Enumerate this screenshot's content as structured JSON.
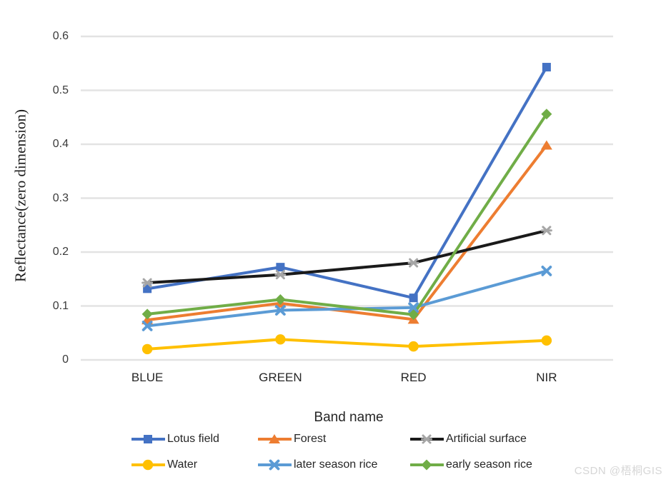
{
  "watermark": "CSDN @梧桐GIS",
  "chart_data": {
    "type": "line",
    "title": "",
    "xlabel": "Band name",
    "ylabel": "Reflectance(zero dimension)",
    "categories": [
      "BLUE",
      "GREEN",
      "RED",
      "NIR"
    ],
    "ylim": [
      0,
      0.6
    ],
    "ytick_step": 0.1,
    "ytick_labels": [
      "0",
      "0.1",
      "0.2",
      "0.3",
      "0.4",
      "0.5",
      "0.6"
    ],
    "grid": true,
    "legend_position": "bottom",
    "gridline_color": "#e3e3e3",
    "series": [
      {
        "name": "Lotus field",
        "color": "#4472C4",
        "marker": "square",
        "marker_color": "#4472C4",
        "values": [
          0.132,
          0.172,
          0.115,
          0.543
        ]
      },
      {
        "name": "Forest",
        "color": "#ED7D31",
        "marker": "triangle",
        "marker_color": "#ED7D31",
        "values": [
          0.074,
          0.105,
          0.075,
          0.398
        ]
      },
      {
        "name": "Artificial surface",
        "color": "#1a1a1a",
        "marker": "star",
        "marker_color": "#a6a6a6",
        "values": [
          0.143,
          0.158,
          0.18,
          0.24
        ]
      },
      {
        "name": "Water",
        "color": "#FFC000",
        "marker": "circle",
        "marker_color": "#FFC000",
        "values": [
          0.02,
          0.038,
          0.025,
          0.036
        ]
      },
      {
        "name": "later season rice",
        "color": "#5B9BD5",
        "marker": "x",
        "marker_color": "#5B9BD5",
        "values": [
          0.063,
          0.092,
          0.097,
          0.165
        ]
      },
      {
        "name": "early season rice",
        "color": "#70AD47",
        "marker": "diamond",
        "marker_color": "#70AD47",
        "values": [
          0.085,
          0.112,
          0.084,
          0.456
        ]
      }
    ]
  }
}
